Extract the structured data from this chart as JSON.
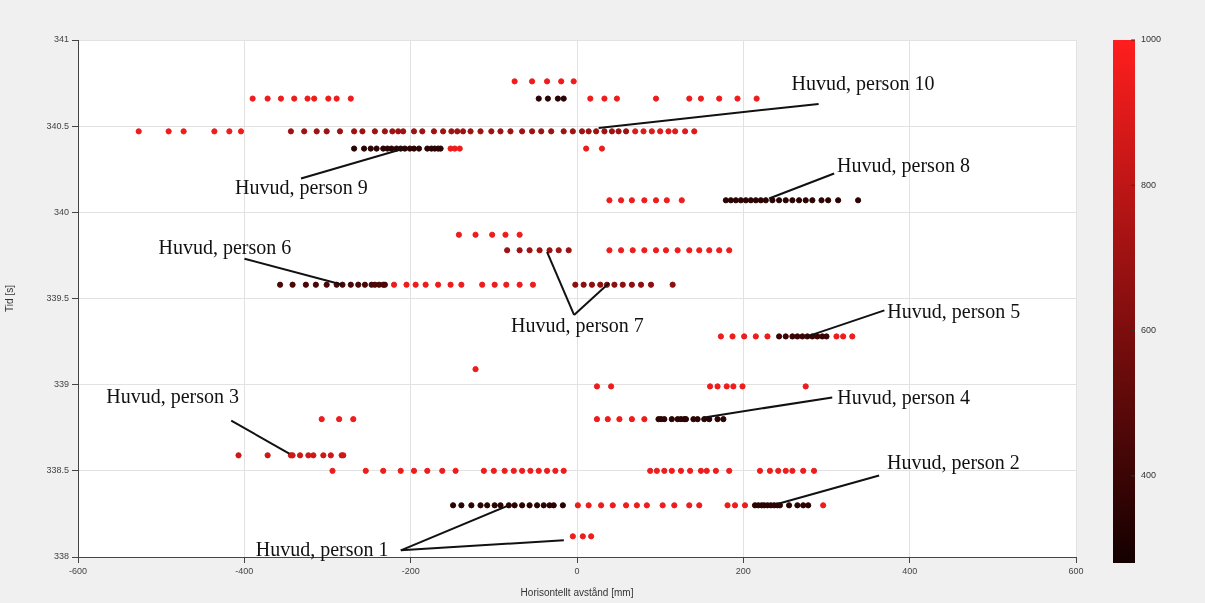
{
  "chart_data": {
    "type": "scatter",
    "xlabel": "Horisontellt avstånd [mm]",
    "ylabel": "Tid [s]",
    "xlim": [
      -600,
      600
    ],
    "xticks": [
      -600,
      -400,
      -200,
      0,
      200,
      400,
      600
    ],
    "ylim": [
      338,
      341
    ],
    "yticks": [
      338,
      338.5,
      339,
      339.5,
      340,
      340.5,
      341
    ],
    "grid": true,
    "marker": "circle",
    "clim": [
      280,
      1000
    ],
    "cticks": [
      400,
      600,
      800,
      1000
    ],
    "x": [
      -75,
      -54,
      -36,
      -19,
      -4,
      -390,
      -372,
      -356,
      -340,
      -324,
      -316,
      -299,
      -289,
      -272,
      -46,
      -35,
      -23,
      -16,
      16,
      33,
      48,
      95,
      135,
      149,
      171,
      193,
      216,
      -527,
      -491,
      -473,
      -436,
      -418,
      -404,
      -344,
      -328,
      -313,
      -301,
      -285,
      -268,
      -258,
      -243,
      -231,
      -222,
      -215,
      -209,
      -196,
      -186,
      -172,
      -161,
      -151,
      -144,
      -137,
      -128,
      -116,
      -103,
      -92,
      -80,
      -66,
      -54,
      -43,
      -31,
      -16,
      -5,
      6,
      14,
      23,
      33,
      42,
      50,
      59,
      70,
      80,
      90,
      100,
      110,
      118,
      130,
      141,
      -268,
      -256,
      -248,
      -241,
      -233,
      -228,
      -223,
      -217,
      -212,
      -207,
      -201,
      -196,
      -190,
      -180,
      -175,
      -171,
      -167,
      -164,
      -152,
      -147,
      -141,
      11,
      30,
      39,
      53,
      66,
      81,
      95,
      108,
      126,
      179,
      185,
      191,
      197,
      203,
      209,
      215,
      221,
      227,
      235,
      243,
      251,
      259,
      267,
      275,
      283,
      294,
      302,
      314,
      338,
      -142,
      -122,
      -102,
      -86,
      -69,
      -84,
      -69,
      -57,
      -45,
      -33,
      -22,
      -10,
      39,
      53,
      67,
      81,
      95,
      107,
      121,
      135,
      147,
      159,
      171,
      183,
      -357,
      -342,
      -326,
      -314,
      -301,
      -289,
      -282,
      -272,
      -263,
      -255,
      -247,
      -243,
      -238,
      -233,
      -231,
      -220,
      -205,
      -194,
      -182,
      -167,
      -152,
      -139,
      -114,
      -99,
      -85,
      -69,
      -53,
      -2,
      8,
      18,
      28,
      36,
      45,
      55,
      66,
      77,
      89,
      115,
      173,
      187,
      201,
      215,
      229,
      243,
      251,
      259,
      265,
      271,
      277,
      283,
      289,
      295,
      300,
      312,
      320,
      331,
      -122,
      24,
      41,
      160,
      169,
      180,
      188,
      199,
      275,
      -307,
      -286,
      -269,
      24,
      37,
      51,
      66,
      81,
      98,
      101,
      105,
      114,
      121,
      125,
      129,
      131,
      140,
      145,
      153,
      159,
      169,
      176,
      -407,
      -372,
      -344,
      -342,
      -333,
      -323,
      -317,
      -305,
      -296,
      -283,
      -281,
      -294,
      -254,
      -233,
      -212,
      -196,
      -180,
      -162,
      -146,
      -112,
      -100,
      -87,
      -76,
      -66,
      -56,
      -46,
      -36,
      -26,
      -16,
      88,
      96,
      105,
      114,
      125,
      136,
      149,
      156,
      167,
      183,
      220,
      232,
      242,
      251,
      259,
      272,
      285,
      -149,
      -139,
      -127,
      -116,
      -108,
      -99,
      -92,
      -82,
      -75,
      -66,
      -57,
      -48,
      -40,
      -33,
      -28,
      -17,
      1,
      14,
      29,
      43,
      59,
      72,
      84,
      103,
      117,
      135,
      147,
      181,
      190,
      202,
      214,
      218,
      222,
      225,
      229,
      233,
      237,
      241,
      244,
      255,
      265,
      272,
      278,
      296,
      -5,
      7,
      17
    ],
    "values": [
      340.76,
      340.76,
      340.76,
      340.76,
      340.76,
      340.66,
      340.66,
      340.66,
      340.66,
      340.66,
      340.66,
      340.66,
      340.66,
      340.66,
      340.66,
      340.66,
      340.66,
      340.66,
      340.66,
      340.66,
      340.66,
      340.66,
      340.66,
      340.66,
      340.66,
      340.66,
      340.66,
      340.47,
      340.47,
      340.47,
      340.47,
      340.47,
      340.47,
      340.47,
      340.47,
      340.47,
      340.47,
      340.47,
      340.47,
      340.47,
      340.47,
      340.47,
      340.47,
      340.47,
      340.47,
      340.47,
      340.47,
      340.47,
      340.47,
      340.47,
      340.47,
      340.47,
      340.47,
      340.47,
      340.47,
      340.47,
      340.47,
      340.47,
      340.47,
      340.47,
      340.47,
      340.47,
      340.47,
      340.47,
      340.47,
      340.47,
      340.47,
      340.47,
      340.47,
      340.47,
      340.47,
      340.47,
      340.47,
      340.47,
      340.47,
      340.47,
      340.47,
      340.47,
      340.37,
      340.37,
      340.37,
      340.37,
      340.37,
      340.37,
      340.37,
      340.37,
      340.37,
      340.37,
      340.37,
      340.37,
      340.37,
      340.37,
      340.37,
      340.37,
      340.37,
      340.37,
      340.37,
      340.37,
      340.37,
      340.37,
      340.37,
      340.07,
      340.07,
      340.07,
      340.07,
      340.07,
      340.07,
      340.07,
      340.07,
      340.07,
      340.07,
      340.07,
      340.07,
      340.07,
      340.07,
      340.07,
      340.07,
      340.07,
      340.07,
      340.07,
      340.07,
      340.07,
      340.07,
      340.07,
      340.07,
      340.07,
      340.07,
      340.07,
      339.87,
      339.87,
      339.87,
      339.87,
      339.87,
      339.78,
      339.78,
      339.78,
      339.78,
      339.78,
      339.78,
      339.78,
      339.78,
      339.78,
      339.78,
      339.78,
      339.78,
      339.78,
      339.78,
      339.78,
      339.78,
      339.78,
      339.78,
      339.78,
      339.58,
      339.58,
      339.58,
      339.58,
      339.58,
      339.58,
      339.58,
      339.58,
      339.58,
      339.58,
      339.58,
      339.58,
      339.58,
      339.58,
      339.58,
      339.58,
      339.58,
      339.58,
      339.58,
      339.58,
      339.58,
      339.58,
      339.58,
      339.58,
      339.58,
      339.58,
      339.58,
      339.58,
      339.58,
      339.58,
      339.58,
      339.58,
      339.58,
      339.58,
      339.58,
      339.58,
      339.58,
      339.58,
      339.28,
      339.28,
      339.28,
      339.28,
      339.28,
      339.28,
      339.28,
      339.28,
      339.28,
      339.28,
      339.28,
      339.28,
      339.28,
      339.28,
      339.28,
      339.28,
      339.28,
      339.28,
      339.09,
      338.99,
      338.99,
      338.99,
      338.99,
      338.99,
      338.99,
      338.99,
      338.99,
      338.8,
      338.8,
      338.8,
      338.8,
      338.8,
      338.8,
      338.8,
      338.8,
      338.8,
      338.8,
      338.8,
      338.8,
      338.8,
      338.8,
      338.8,
      338.8,
      338.8,
      338.8,
      338.8,
      338.8,
      338.8,
      338.8,
      338.59,
      338.59,
      338.59,
      338.59,
      338.59,
      338.59,
      338.59,
      338.59,
      338.59,
      338.59,
      338.59,
      338.5,
      338.5,
      338.5,
      338.5,
      338.5,
      338.5,
      338.5,
      338.5,
      338.5,
      338.5,
      338.5,
      338.5,
      338.5,
      338.5,
      338.5,
      338.5,
      338.5,
      338.5,
      338.5,
      338.5,
      338.5,
      338.5,
      338.5,
      338.5,
      338.5,
      338.5,
      338.5,
      338.5,
      338.5,
      338.5,
      338.5,
      338.5,
      338.5,
      338.5,
      338.5,
      338.3,
      338.3,
      338.3,
      338.3,
      338.3,
      338.3,
      338.3,
      338.3,
      338.3,
      338.3,
      338.3,
      338.3,
      338.3,
      338.3,
      338.3,
      338.3,
      338.3,
      338.3,
      338.3,
      338.3,
      338.3,
      338.3,
      338.3,
      338.3,
      338.3,
      338.3,
      338.3,
      338.3,
      338.3,
      338.3,
      338.3,
      338.3,
      338.3,
      338.3,
      338.3,
      338.3,
      338.3,
      338.3,
      338.3,
      338.3,
      338.3,
      338.3,
      338.3,
      338.3,
      338.12,
      338.12,
      338.12
    ],
    "cvalues": [
      950,
      950,
      950,
      950,
      950,
      950,
      950,
      950,
      950,
      950,
      950,
      950,
      950,
      950,
      350,
      350,
      350,
      350,
      950,
      950,
      950,
      950,
      950,
      950,
      950,
      950,
      950,
      950,
      950,
      950,
      950,
      950,
      950,
      700,
      700,
      700,
      700,
      700,
      700,
      700,
      700,
      700,
      700,
      700,
      700,
      700,
      700,
      700,
      700,
      700,
      700,
      700,
      700,
      700,
      700,
      700,
      700,
      700,
      700,
      700,
      700,
      700,
      700,
      700,
      700,
      700,
      700,
      700,
      700,
      700,
      900,
      900,
      900,
      900,
      900,
      900,
      900,
      900,
      350,
      350,
      350,
      350,
      350,
      350,
      350,
      350,
      350,
      350,
      350,
      350,
      350,
      350,
      350,
      350,
      350,
      350,
      950,
      950,
      950,
      950,
      950,
      950,
      950,
      950,
      950,
      950,
      950,
      950,
      350,
      350,
      350,
      350,
      350,
      350,
      350,
      350,
      350,
      350,
      350,
      350,
      350,
      350,
      350,
      350,
      350,
      350,
      350,
      350,
      950,
      950,
      950,
      950,
      950,
      700,
      700,
      700,
      700,
      700,
      700,
      700,
      950,
      950,
      950,
      950,
      950,
      950,
      950,
      950,
      950,
      950,
      950,
      950,
      450,
      450,
      450,
      450,
      450,
      450,
      450,
      450,
      450,
      450,
      450,
      450,
      450,
      450,
      450,
      950,
      950,
      950,
      950,
      950,
      950,
      950,
      950,
      950,
      950,
      950,
      950,
      650,
      650,
      650,
      650,
      650,
      650,
      650,
      650,
      650,
      650,
      650,
      950,
      950,
      950,
      950,
      950,
      400,
      400,
      400,
      400,
      400,
      400,
      400,
      400,
      400,
      400,
      950,
      950,
      950,
      950,
      950,
      950,
      950,
      950,
      950,
      950,
      950,
      950,
      950,
      950,
      950,
      950,
      950,
      950,
      950,
      950,
      350,
      350,
      350,
      350,
      350,
      350,
      350,
      350,
      350,
      350,
      350,
      350,
      350,
      350,
      850,
      850,
      850,
      850,
      850,
      850,
      850,
      850,
      850,
      850,
      850,
      950,
      950,
      950,
      950,
      950,
      950,
      950,
      950,
      950,
      950,
      950,
      950,
      950,
      950,
      950,
      950,
      950,
      950,
      950,
      950,
      950,
      950,
      950,
      950,
      950,
      950,
      950,
      950,
      950,
      950,
      950,
      950,
      950,
      950,
      950,
      350,
      350,
      350,
      350,
      350,
      350,
      350,
      350,
      350,
      350,
      350,
      350,
      350,
      350,
      350,
      350,
      950,
      950,
      950,
      950,
      950,
      950,
      950,
      950,
      950,
      950,
      950,
      950,
      950,
      950,
      350,
      350,
      350,
      350,
      350,
      350,
      350,
      350,
      350,
      350,
      350,
      350,
      350,
      950,
      950,
      950,
      950
    ],
    "annotations": [
      {
        "text": "Huvud, person 10",
        "x": 26,
        "y": 340.49
      },
      {
        "text": "Huvud, person 9",
        "x": -208,
        "y": 340.37
      },
      {
        "text": "Huvud, person 8",
        "x": 231,
        "y": 340.08
      },
      {
        "text": "Huvud, person 6",
        "x": -282,
        "y": 339.58
      },
      {
        "text": "Huvud, person 7",
        "x": -36,
        "y": 339.77
      },
      {
        "text": "Huvud, person 5",
        "x": 277,
        "y": 339.28
      },
      {
        "text": "Huvud, person 4",
        "x": 153,
        "y": 338.81
      },
      {
        "text": "Huvud, person 3",
        "x": -346,
        "y": 338.6
      },
      {
        "text": "Huvud, person 2",
        "x": 243,
        "y": 338.31
      },
      {
        "text": "Huvud, person 1",
        "x": -82,
        "y": 338.3
      }
    ]
  }
}
